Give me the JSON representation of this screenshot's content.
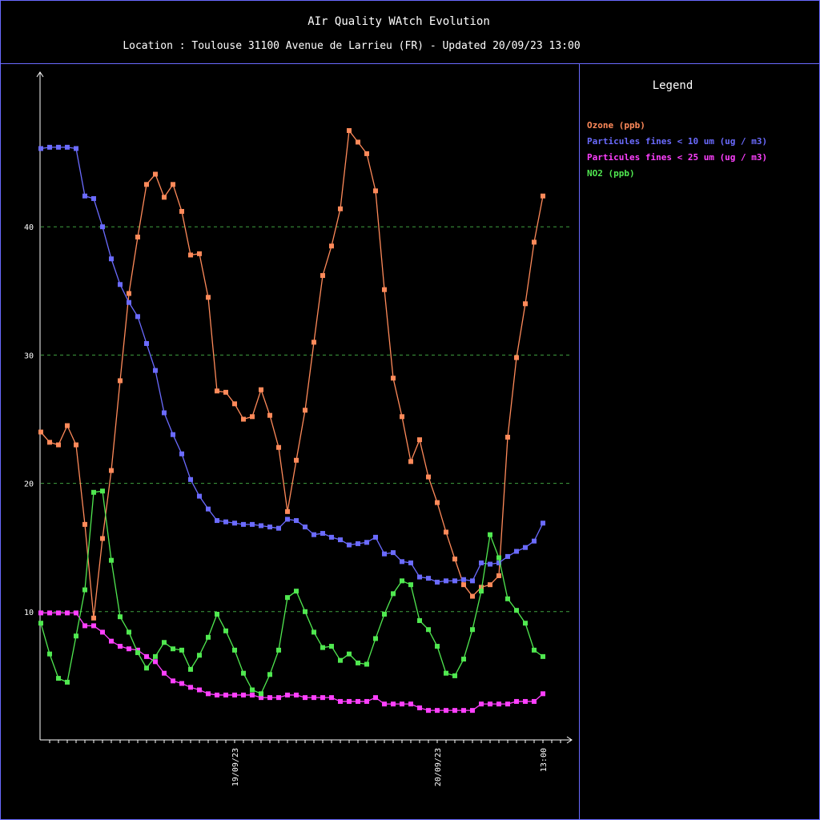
{
  "title": "AIr Quality WAtch Evolution",
  "subtitle": "Location : Toulouse 31100 Avenue de Larrieu (FR) - Updated 20/09/23 13:00",
  "legend": {
    "title": "Legend",
    "items": [
      {
        "label": "Ozone (ppb)",
        "color": "#ff8a5a"
      },
      {
        "label": "Particules fines < 10 um (ug / m3)",
        "color": "#6b6bff"
      },
      {
        "label": "Particules fines < 25 um (ug / m3)",
        "color": "#ff40ff"
      },
      {
        "label": "NO2 (ppb)",
        "color": "#50e850"
      }
    ]
  },
  "chart_data": {
    "type": "line",
    "title": "AIr Quality WAtch Evolution",
    "xlabel": "",
    "ylabel": "",
    "ylim": [
      0,
      50
    ],
    "yticks": [
      10,
      20,
      30,
      40
    ],
    "grid": "horizontal dashed green at 10, 20, 30, 40",
    "legend_position": "right panel",
    "x_tick_labels": [
      {
        "index": 22,
        "label": "19/09/23"
      },
      {
        "index": 45,
        "label": "20/09/23"
      },
      {
        "index": 57,
        "label": "13:00"
      }
    ],
    "series": [
      {
        "name": "Ozone (ppb)",
        "color": "#ff8a5a",
        "values": [
          24,
          23.2,
          23,
          24.5,
          23,
          16.8,
          9.5,
          15.7,
          21,
          28,
          34.8,
          39.2,
          43.3,
          44.1,
          42.3,
          43.3,
          41.2,
          37.8,
          37.9,
          34.5,
          27.2,
          27.1,
          26.2,
          25,
          25.2,
          27.3,
          25.3,
          22.8,
          17.8,
          21.8,
          25.7,
          31,
          36.2,
          38.5,
          41.4,
          47.5,
          46.6,
          45.7,
          42.8,
          35.1,
          28.2,
          25.2,
          21.7,
          23.4,
          20.5,
          18.5,
          16.2,
          14.1,
          12.1,
          11.2,
          11.9,
          12.1,
          12.8,
          23.6,
          29.8,
          34,
          38.8,
          42.4
        ]
      },
      {
        "name": "Particules fines < 10 um (ug / m3)",
        "color": "#6b6bff",
        "values": [
          46.1,
          46.2,
          46.2,
          46.2,
          46.1,
          42.4,
          42.2,
          40,
          37.5,
          35.5,
          34.1,
          33,
          30.9,
          28.8,
          25.5,
          23.8,
          22.3,
          20.3,
          19,
          18,
          17.1,
          17,
          16.9,
          16.8,
          16.8,
          16.7,
          16.6,
          16.5,
          17.2,
          17.1,
          16.6,
          16,
          16.1,
          15.8,
          15.6,
          15.2,
          15.3,
          15.4,
          15.8,
          14.5,
          14.6,
          13.9,
          13.8,
          12.7,
          12.6,
          12.3,
          12.4,
          12.4,
          12.5,
          12.4,
          13.8,
          13.7,
          13.8,
          14.3,
          14.7,
          15,
          15.5,
          16.9
        ]
      },
      {
        "name": "Particules fines < 25 um (ug / m3)",
        "color": "#ff40ff",
        "values": [
          9.9,
          9.9,
          9.9,
          9.9,
          9.9,
          8.9,
          8.9,
          8.4,
          7.7,
          7.3,
          7.1,
          7,
          6.5,
          6.1,
          5.2,
          4.6,
          4.4,
          4.1,
          3.9,
          3.6,
          3.5,
          3.5,
          3.5,
          3.5,
          3.5,
          3.3,
          3.3,
          3.3,
          3.5,
          3.5,
          3.3,
          3.3,
          3.3,
          3.3,
          3,
          3,
          3,
          3,
          3.3,
          2.8,
          2.8,
          2.8,
          2.8,
          2.5,
          2.3,
          2.3,
          2.3,
          2.3,
          2.3,
          2.3,
          2.8,
          2.8,
          2.8,
          2.8,
          3,
          3,
          3,
          3.6
        ]
      },
      {
        "name": "NO2 (ppb)",
        "color": "#50e850",
        "values": [
          9.1,
          6.7,
          4.8,
          4.5,
          8.1,
          11.7,
          19.3,
          19.4,
          14,
          9.6,
          8.4,
          6.8,
          5.6,
          6.5,
          7.6,
          7.1,
          7,
          5.5,
          6.6,
          8,
          9.8,
          8.5,
          7,
          5.2,
          3.9,
          3.6,
          5.1,
          7,
          11.1,
          11.6,
          10,
          8.4,
          7.2,
          7.3,
          6.2,
          6.7,
          6,
          5.9,
          7.9,
          9.8,
          11.4,
          12.4,
          12.1,
          9.3,
          8.6,
          7.3,
          5.2,
          5,
          6.3,
          8.6,
          11.6,
          16,
          14.2,
          11,
          10.1,
          9.1,
          7,
          6.5
        ]
      }
    ]
  }
}
